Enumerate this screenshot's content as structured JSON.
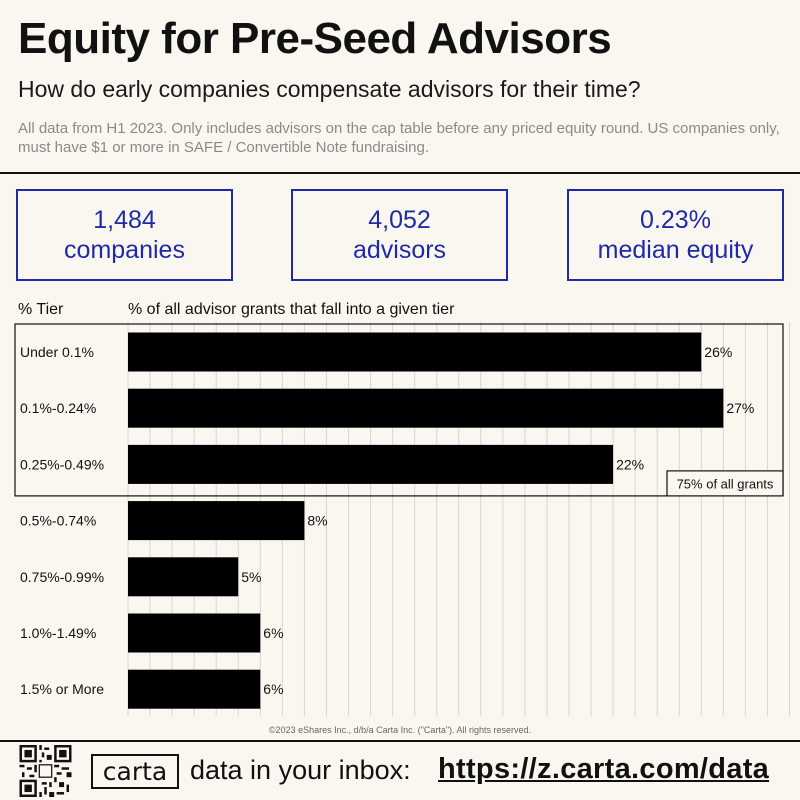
{
  "header": {
    "title": "Equity for Pre-Seed Advisors",
    "subtitle": "How do early companies compensate advisors for their time?",
    "note": "All data from H1 2023. Only includes advisors on the cap table before any priced equity round. US companies only, must have $1 or more in SAFE / Convertible Note fundraising."
  },
  "stats": [
    {
      "value": "1,484",
      "label": "companies"
    },
    {
      "value": "4,052",
      "label": "advisors"
    },
    {
      "value": "0.23%",
      "label": "median equity"
    }
  ],
  "colors": {
    "accent": "#1f2aa8",
    "bar": "#000000",
    "background": "#faf7f0",
    "grid": "#d8d6d0"
  },
  "chart_data": {
    "type": "bar",
    "orientation": "horizontal",
    "tier_header": "% Tier",
    "value_header": "% of all advisor grants that fall into a given tier",
    "categories": [
      "Under 0.1%",
      "0.1%-0.24%",
      "0.25%-0.49%",
      "0.5%-0.74%",
      "0.75%-0.99%",
      "1.0%-1.49%",
      "1.5% or More"
    ],
    "values": [
      26,
      27,
      22,
      8,
      5,
      6,
      6
    ],
    "value_labels": [
      "26%",
      "27%",
      "22%",
      "8%",
      "5%",
      "6%",
      "6%"
    ],
    "xlim": [
      0,
      30
    ],
    "grid": true,
    "highlight": {
      "categories": [
        "Under 0.1%",
        "0.1%-0.24%",
        "0.25%-0.49%"
      ],
      "label": "75% of all grants"
    }
  },
  "footer": {
    "copyright": "©2023 eShares Inc., d/b/a Carta Inc. (\"Carta\"). All rights reserved.",
    "logo": "carta",
    "cta": "data in your inbox:",
    "link": "https://z.carta.com/data",
    "qr_icon": "qr-code-icon"
  }
}
